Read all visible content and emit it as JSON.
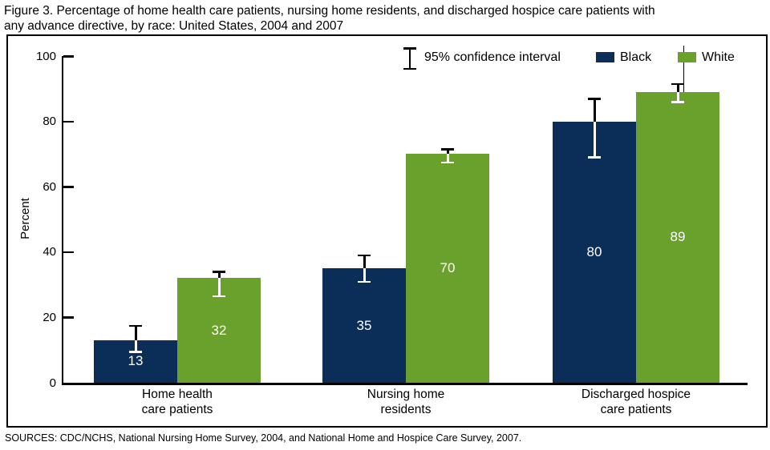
{
  "figure": {
    "title_line1": "Figure 3. Percentage of home health care patients, nursing home residents, and discharged hospice care patients with",
    "title_line2": "any advance directive, by race: United States, 2004 and 2007",
    "source": "SOURCES: CDC/NCHS, National Nursing Home Survey, 2004, and National Home and Hospice Care Survey, 2007."
  },
  "legend": {
    "ci_label": "95% confidence interval",
    "series": [
      {
        "name": "Black",
        "color": "#0b2e59"
      },
      {
        "name": "White",
        "color": "#6aa02c"
      }
    ]
  },
  "colors": {
    "black_series": "#0b2e59",
    "white_series": "#6aa02c",
    "axis": "#000000",
    "bar_value_text": "#ffffff"
  },
  "chart_data": {
    "type": "bar",
    "title": "Percentage of home health care patients, nursing home residents, and discharged hospice care patients with any advance directive, by race: United States, 2004 and 2007",
    "xlabel": "",
    "ylabel": "Percent",
    "ylim": [
      0,
      100
    ],
    "yticks": [
      0,
      20,
      40,
      60,
      80,
      100
    ],
    "grid": false,
    "legend_position": "top-right",
    "error_bars": "95% confidence interval",
    "categories": [
      "Home health care patients",
      "Nursing home residents",
      "Discharged hospice care patients"
    ],
    "category_lines": [
      [
        "Home health",
        "care patients"
      ],
      [
        "Nursing home",
        "residents"
      ],
      [
        "Discharged hospice",
        "care patients"
      ]
    ],
    "series": [
      {
        "name": "Black",
        "color": "#0b2e59",
        "values": [
          13,
          35,
          80
        ],
        "ci_low": [
          9.5,
          31,
          69
        ],
        "ci_high": [
          17.5,
          39,
          87
        ]
      },
      {
        "name": "White",
        "color": "#6aa02c",
        "values": [
          32,
          70,
          89
        ],
        "ci_low": [
          26.5,
          67.5,
          86
        ],
        "ci_high": [
          34,
          71.5,
          91.5
        ]
      }
    ]
  }
}
